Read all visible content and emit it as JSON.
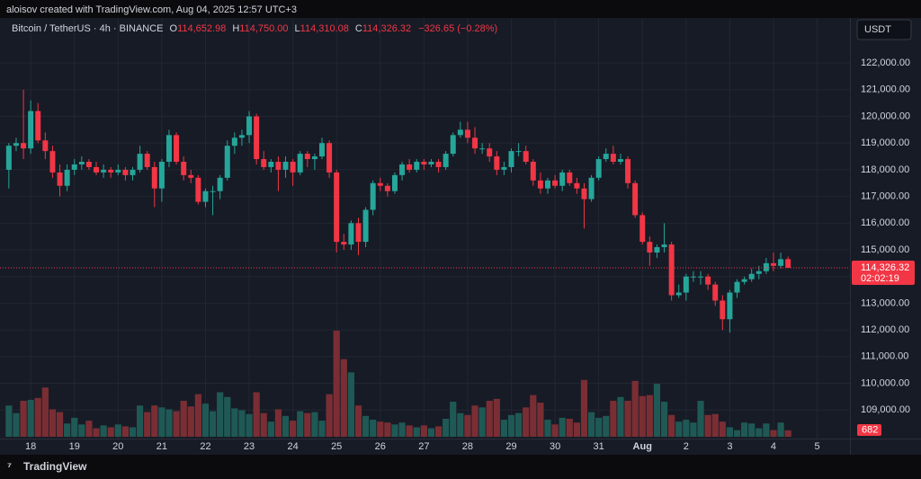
{
  "header": {
    "credit": "aloisov created with TradingView.com, Aug 04, 2025 12:57 UTC+3"
  },
  "footer": {
    "brand": "TradingView"
  },
  "chart_data": {
    "type": "candlestick",
    "title": "Bitcoin / TetherUS · 4h · BINANCE",
    "legend": [
      {
        "key": "O",
        "value": "114,652.98"
      },
      {
        "key": "H",
        "value": "114,750.00"
      },
      {
        "key": "L",
        "value": "114,310.08"
      },
      {
        "key": "C",
        "value": "114,326.32"
      }
    ],
    "change": "−326.65 (−0.28%)",
    "currency": "USDT",
    "last_price_label": "114,326.32",
    "countdown": "02:02:19",
    "up_color": "#26a69a",
    "down_color": "#f23645",
    "volume_up_color": "#1f5955",
    "volume_down_color": "#7a2e34",
    "grid": true,
    "xlim": [
      -0.6,
      115.5
    ],
    "ylim": [
      107930,
      123620
    ],
    "yticks": [
      {
        "value": 109000,
        "label": "109,000.00"
      },
      {
        "value": 110000,
        "label": "110,000.00"
      },
      {
        "value": 111000,
        "label": "111,000.00"
      },
      {
        "value": 112000,
        "label": "112,000.00"
      },
      {
        "value": 113000,
        "label": "113,000.00"
      },
      {
        "value": 114000,
        "label": "114,000.00"
      },
      {
        "value": 115000,
        "label": "115,000.00"
      },
      {
        "value": 116000,
        "label": "116,000.00"
      },
      {
        "value": 117000,
        "label": "117,000.00"
      },
      {
        "value": 118000,
        "label": "118,000.00"
      },
      {
        "value": 119000,
        "label": "119,000.00"
      },
      {
        "value": 120000,
        "label": "120,000.00"
      },
      {
        "value": 121000,
        "label": "121,000.00"
      },
      {
        "value": 122000,
        "label": "122,000.00"
      }
    ],
    "xticks": [
      {
        "value": 3,
        "label": "18"
      },
      {
        "value": 9,
        "label": "19"
      },
      {
        "value": 15,
        "label": "20"
      },
      {
        "value": 21,
        "label": "21"
      },
      {
        "value": 27,
        "label": "22"
      },
      {
        "value": 33,
        "label": "23"
      },
      {
        "value": 39,
        "label": "24"
      },
      {
        "value": 45,
        "label": "25"
      },
      {
        "value": 51,
        "label": "26"
      },
      {
        "value": 57,
        "label": "27"
      },
      {
        "value": 63,
        "label": "28"
      },
      {
        "value": 69,
        "label": "29"
      },
      {
        "value": 75,
        "label": "30"
      },
      {
        "value": 81,
        "label": "31"
      },
      {
        "value": 87,
        "label": "Aug"
      },
      {
        "value": 93,
        "label": "2"
      },
      {
        "value": 99,
        "label": "3"
      },
      {
        "value": 105,
        "label": "4"
      },
      {
        "value": 111,
        "label": "5"
      }
    ],
    "open": [
      118000,
      118900,
      119000,
      118800,
      120200,
      119100,
      118700,
      117900,
      117400,
      118000,
      118200,
      118300,
      118100,
      117900,
      118000,
      117900,
      118000,
      117800,
      118000,
      118600,
      118100,
      117300,
      118300,
      119300,
      118300,
      117800,
      117700,
      116800,
      117200,
      117200,
      117700,
      118900,
      119200,
      119300,
      120000,
      118400,
      118100,
      118300,
      118000,
      118300,
      117900,
      118600,
      118400,
      118500,
      119000,
      117900,
      115300,
      115200,
      116000,
      115300,
      116500,
      117500,
      117400,
      117200,
      117800,
      118200,
      118000,
      118300,
      118200,
      118300,
      118100,
      118600,
      119300,
      119500,
      119200,
      118800,
      118800,
      118500,
      118000,
      118100,
      118700,
      118700,
      118300,
      117600,
      117300,
      117600,
      117400,
      117900,
      117500,
      117300,
      116900,
      117700,
      118400,
      118600,
      118300,
      118400,
      117500,
      116300,
      115300,
      114900,
      115100,
      115200,
      113300,
      113400,
      114000,
      114000,
      114000,
      113700,
      113100,
      112400,
      113400,
      113800,
      113900,
      114100,
      114200,
      114500,
      114400,
      114652.98
    ],
    "high": [
      119000,
      119200,
      121000,
      120600,
      120500,
      119400,
      118900,
      118200,
      118200,
      118400,
      118500,
      118400,
      118300,
      118200,
      118100,
      118200,
      118100,
      118100,
      118900,
      118700,
      118300,
      118400,
      119500,
      119400,
      118500,
      118000,
      117800,
      117300,
      117400,
      117800,
      119100,
      119400,
      119500,
      120200,
      120100,
      118700,
      118400,
      118500,
      118500,
      118400,
      118700,
      118700,
      118600,
      119200,
      119100,
      118000,
      115600,
      116100,
      116200,
      116600,
      117600,
      117700,
      117500,
      117900,
      118300,
      118400,
      118400,
      118400,
      118400,
      118400,
      118700,
      119400,
      119800,
      119800,
      119600,
      119000,
      119000,
      118700,
      118300,
      118800,
      119000,
      118900,
      118400,
      117900,
      117700,
      117800,
      118000,
      118000,
      117700,
      117500,
      117800,
      118500,
      118800,
      118900,
      118600,
      118500,
      117600,
      116400,
      115500,
      115200,
      116000,
      115300,
      113700,
      114100,
      114200,
      114200,
      114100,
      113800,
      113300,
      113500,
      113900,
      114000,
      114300,
      114400,
      114700,
      114900,
      114900,
      114750
    ],
    "low": [
      117300,
      118700,
      118400,
      118600,
      119000,
      118400,
      117700,
      117000,
      117200,
      117800,
      118000,
      118000,
      117800,
      117700,
      117700,
      117800,
      117600,
      117600,
      117900,
      118000,
      116600,
      116800,
      118100,
      118200,
      117600,
      117500,
      116700,
      116600,
      116300,
      116900,
      117600,
      118600,
      118900,
      119000,
      118200,
      118000,
      117900,
      117200,
      117700,
      117400,
      117800,
      118100,
      118000,
      118400,
      117700,
      114900,
      115000,
      115000,
      114800,
      115100,
      116300,
      117200,
      117000,
      117100,
      117600,
      117900,
      117900,
      118000,
      118100,
      117900,
      118000,
      118500,
      119200,
      119000,
      118600,
      118600,
      118300,
      117800,
      117800,
      117900,
      118500,
      118200,
      117400,
      117100,
      117100,
      117300,
      117200,
      117400,
      117100,
      115800,
      116800,
      117600,
      118300,
      118200,
      118200,
      117300,
      116200,
      115200,
      114400,
      114700,
      114900,
      113100,
      113200,
      113100,
      113800,
      113700,
      113500,
      112900,
      112000,
      111900,
      113200,
      113700,
      113800,
      113900,
      114100,
      114200,
      114300,
      114310.08
    ],
    "close": [
      118900,
      119000,
      118800,
      120200,
      119100,
      118700,
      117900,
      117400,
      118000,
      118200,
      118300,
      118100,
      117900,
      118000,
      117900,
      118000,
      117800,
      118000,
      118600,
      118100,
      117300,
      118300,
      119300,
      118300,
      117800,
      117700,
      116800,
      117200,
      117200,
      117700,
      118900,
      119200,
      119300,
      120000,
      118400,
      118100,
      118300,
      118000,
      118300,
      117900,
      118600,
      118400,
      118500,
      119000,
      117900,
      115300,
      115200,
      116000,
      115300,
      116500,
      117500,
      117400,
      117200,
      117800,
      118200,
      118000,
      118300,
      118200,
      118300,
      118100,
      118600,
      119300,
      119500,
      119200,
      118800,
      118800,
      118500,
      118000,
      118100,
      118700,
      118700,
      118300,
      117600,
      117300,
      117600,
      117400,
      117900,
      117500,
      117300,
      116900,
      117700,
      118400,
      118600,
      118300,
      118400,
      117500,
      116300,
      115300,
      114900,
      115100,
      115200,
      113300,
      113400,
      114000,
      114000,
      114000,
      113700,
      113100,
      112400,
      113400,
      113800,
      113900,
      114100,
      114200,
      114500,
      114400,
      114650,
      114326.32
    ],
    "volume": [
      3300,
      2500,
      3800,
      3900,
      4100,
      5200,
      2900,
      2600,
      1400,
      2000,
      1300,
      1700,
      900,
      1200,
      1000,
      1300,
      1100,
      1000,
      3300,
      2600,
      3300,
      3100,
      2900,
      2700,
      3800,
      3200,
      4500,
      3500,
      2700,
      4700,
      4200,
      3000,
      2800,
      2400,
      4700,
      2500,
      1600,
      2900,
      2200,
      1700,
      2700,
      2500,
      2600,
      1700,
      4500,
      11200,
      8200,
      6800,
      3300,
      2200,
      1800,
      1600,
      1500,
      1300,
      1500,
      1200,
      1000,
      1200,
      900,
      1100,
      1900,
      3700,
      2500,
      2300,
      3300,
      3100,
      3800,
      4000,
      1800,
      2300,
      2500,
      3100,
      4400,
      3600,
      1800,
      1300,
      2000,
      1900,
      1500,
      6000,
      2600,
      2000,
      2200,
      3800,
      4200,
      3800,
      5900,
      4300,
      4400,
      5600,
      3700,
      2300,
      1600,
      1800,
      1500,
      3800,
      2300,
      2400,
      1600,
      1000,
      700,
      1500,
      1400,
      900,
      1400,
      700,
      1500,
      682
    ]
  }
}
